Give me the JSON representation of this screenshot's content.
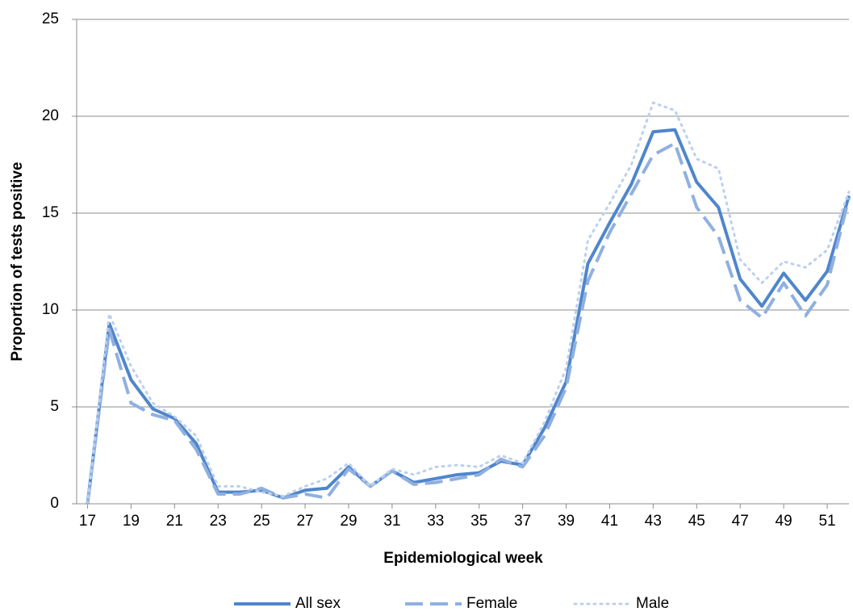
{
  "chart_data": {
    "type": "line",
    "x_label": "Epidemiological week",
    "y_label": "Proportion of tests positive",
    "x": [
      17,
      18,
      19,
      20,
      21,
      22,
      23,
      24,
      25,
      26,
      27,
      28,
      29,
      30,
      31,
      32,
      33,
      34,
      35,
      36,
      37,
      38,
      39,
      40,
      41,
      42,
      43,
      44,
      45,
      46,
      47,
      48,
      49,
      50,
      51,
      52
    ],
    "xlim": [
      16.5,
      52
    ],
    "xticks": [
      17,
      19,
      21,
      23,
      25,
      27,
      29,
      31,
      33,
      35,
      37,
      39,
      41,
      43,
      45,
      47,
      49,
      51
    ],
    "ylim": [
      0,
      25
    ],
    "yticks": [
      0,
      5,
      10,
      15,
      20,
      25
    ],
    "grid": true,
    "legend": "bottom",
    "series": [
      {
        "name": "All sex",
        "color": "#4f86cc",
        "style": "solid",
        "values": [
          0,
          9.3,
          6.4,
          4.9,
          4.4,
          3.1,
          0.6,
          0.6,
          0.7,
          0.3,
          0.7,
          0.8,
          1.9,
          0.9,
          1.7,
          1.1,
          1.3,
          1.5,
          1.6,
          2.2,
          2.0,
          3.9,
          6.3,
          12.4,
          14.5,
          16.5,
          19.2,
          19.3,
          16.6,
          15.3,
          11.6,
          10.2,
          11.9,
          10.5,
          12.0,
          15.9
        ]
      },
      {
        "name": "Female",
        "color": "#8fb0e0",
        "style": "dashed",
        "values": [
          0,
          9.0,
          5.2,
          4.6,
          4.3,
          2.8,
          0.5,
          0.5,
          0.8,
          0.3,
          0.5,
          0.3,
          1.8,
          0.9,
          1.7,
          1.0,
          1.1,
          1.3,
          1.5,
          2.3,
          1.9,
          3.5,
          6.0,
          11.5,
          14.0,
          16.0,
          18.0,
          18.6,
          15.3,
          13.8,
          10.5,
          9.6,
          11.4,
          9.7,
          11.3,
          15.8
        ]
      },
      {
        "name": "Male",
        "color": "#bcd0ee",
        "style": "dotted",
        "values": [
          0,
          9.8,
          7.1,
          5.2,
          4.5,
          3.5,
          0.9,
          0.9,
          0.6,
          0.4,
          0.9,
          1.3,
          2.1,
          0.9,
          1.8,
          1.5,
          1.9,
          2.0,
          1.9,
          2.5,
          2.1,
          4.2,
          7.0,
          13.6,
          15.5,
          17.5,
          20.7,
          20.3,
          17.8,
          17.3,
          12.6,
          11.4,
          12.5,
          12.2,
          13.1,
          16.1
        ]
      }
    ]
  }
}
